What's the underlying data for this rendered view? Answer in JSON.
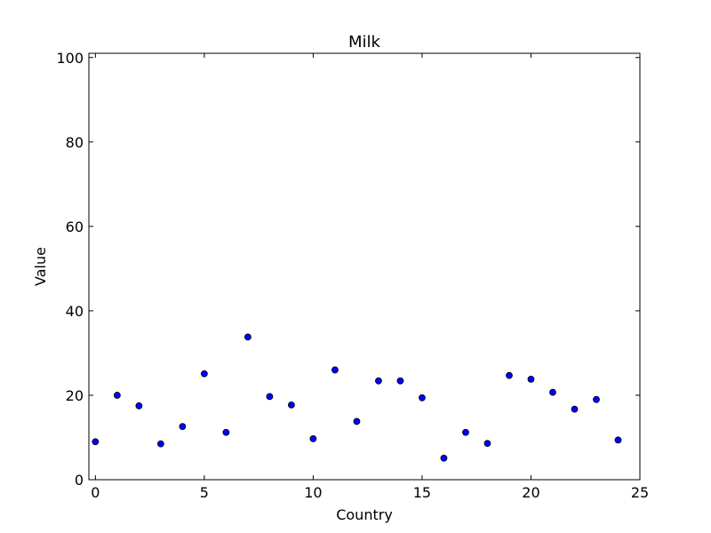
{
  "chart_data": {
    "type": "scatter",
    "title": "Milk",
    "xlabel": "Country",
    "ylabel": "Value",
    "xlim": [
      -0.3,
      25
    ],
    "ylim": [
      0,
      101
    ],
    "xticks": [
      0,
      5,
      10,
      15,
      20,
      25
    ],
    "yticks": [
      0,
      20,
      40,
      60,
      80,
      100
    ],
    "grid": false,
    "marker_color": "#0000ff",
    "series": [
      {
        "x": [
          0,
          1,
          2,
          3,
          4,
          5,
          6,
          7,
          8,
          9,
          10,
          11,
          12,
          13,
          14,
          15,
          16,
          17,
          18,
          19,
          20,
          21,
          22,
          23,
          24
        ],
        "y": [
          9.0,
          20.0,
          17.5,
          8.5,
          12.6,
          25.1,
          11.2,
          33.8,
          19.7,
          17.7,
          9.7,
          26.0,
          13.8,
          23.4,
          23.4,
          19.4,
          5.1,
          11.2,
          8.6,
          24.7,
          23.8,
          20.7,
          16.7,
          19.0,
          9.4
        ]
      }
    ]
  }
}
